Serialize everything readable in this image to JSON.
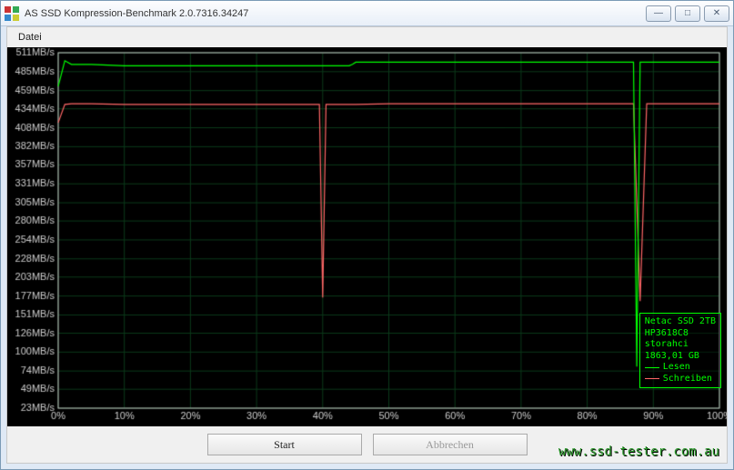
{
  "window": {
    "title": "AS SSD Kompression-Benchmark 2.0.7316.34247"
  },
  "menu": {
    "file": "Datei"
  },
  "buttons": {
    "start": "Start",
    "abort": "Abbrechen"
  },
  "watermark": "www.ssd-tester.com.au",
  "legend": {
    "device": "Netac SSD 2TB",
    "firmware": "HP3618C8",
    "driver": "storahci",
    "capacity": "1863,01 GB",
    "read": "Lesen",
    "write": "Schreiben"
  },
  "chart": {
    "bg": "#000000",
    "grid_color": "#0b3a1a",
    "axis_color": "#cccccc",
    "label_color": "#cccccc",
    "read_color": "#00ff00",
    "write_color": "#ff6666",
    "y_labels": [
      "511MB/s",
      "485MB/s",
      "459MB/s",
      "434MB/s",
      "408MB/s",
      "382MB/s",
      "357MB/s",
      "331MB/s",
      "305MB/s",
      "280MB/s",
      "254MB/s",
      "228MB/s",
      "203MB/s",
      "177MB/s",
      "151MB/s",
      "126MB/s",
      "100MB/s",
      "74MB/s",
      "49MB/s",
      "23MB/s"
    ],
    "y_values": [
      511,
      485,
      459,
      434,
      408,
      382,
      357,
      331,
      305,
      280,
      254,
      228,
      203,
      177,
      151,
      126,
      100,
      74,
      49,
      23
    ],
    "x_labels": [
      "0%",
      "10%",
      "20%",
      "30%",
      "40%",
      "50%",
      "60%",
      "70%",
      "80%",
      "90%",
      "100%"
    ],
    "x_values": [
      0,
      10,
      20,
      30,
      40,
      50,
      60,
      70,
      80,
      90,
      100
    ],
    "read_series": [
      [
        0,
        465
      ],
      [
        1,
        500
      ],
      [
        2,
        495
      ],
      [
        5,
        495
      ],
      [
        10,
        493
      ],
      [
        20,
        493
      ],
      [
        30,
        493
      ],
      [
        40,
        493
      ],
      [
        44,
        493
      ],
      [
        44.5,
        495
      ],
      [
        45,
        498
      ],
      [
        50,
        498
      ],
      [
        60,
        498
      ],
      [
        70,
        498
      ],
      [
        80,
        498
      ],
      [
        85,
        498
      ],
      [
        87,
        498
      ],
      [
        87.5,
        80
      ],
      [
        88,
        498
      ],
      [
        90,
        498
      ],
      [
        95,
        498
      ],
      [
        100,
        498
      ]
    ],
    "write_series": [
      [
        0,
        415
      ],
      [
        1,
        440
      ],
      [
        2,
        441
      ],
      [
        5,
        441
      ],
      [
        10,
        440
      ],
      [
        20,
        440
      ],
      [
        30,
        440
      ],
      [
        38,
        440
      ],
      [
        39.5,
        440
      ],
      [
        40,
        175
      ],
      [
        40.5,
        440
      ],
      [
        45,
        440
      ],
      [
        50,
        441
      ],
      [
        60,
        441
      ],
      [
        70,
        441
      ],
      [
        80,
        441
      ],
      [
        85,
        441
      ],
      [
        87,
        441
      ],
      [
        88,
        170
      ],
      [
        89,
        441
      ],
      [
        92,
        441
      ],
      [
        100,
        441
      ]
    ]
  }
}
